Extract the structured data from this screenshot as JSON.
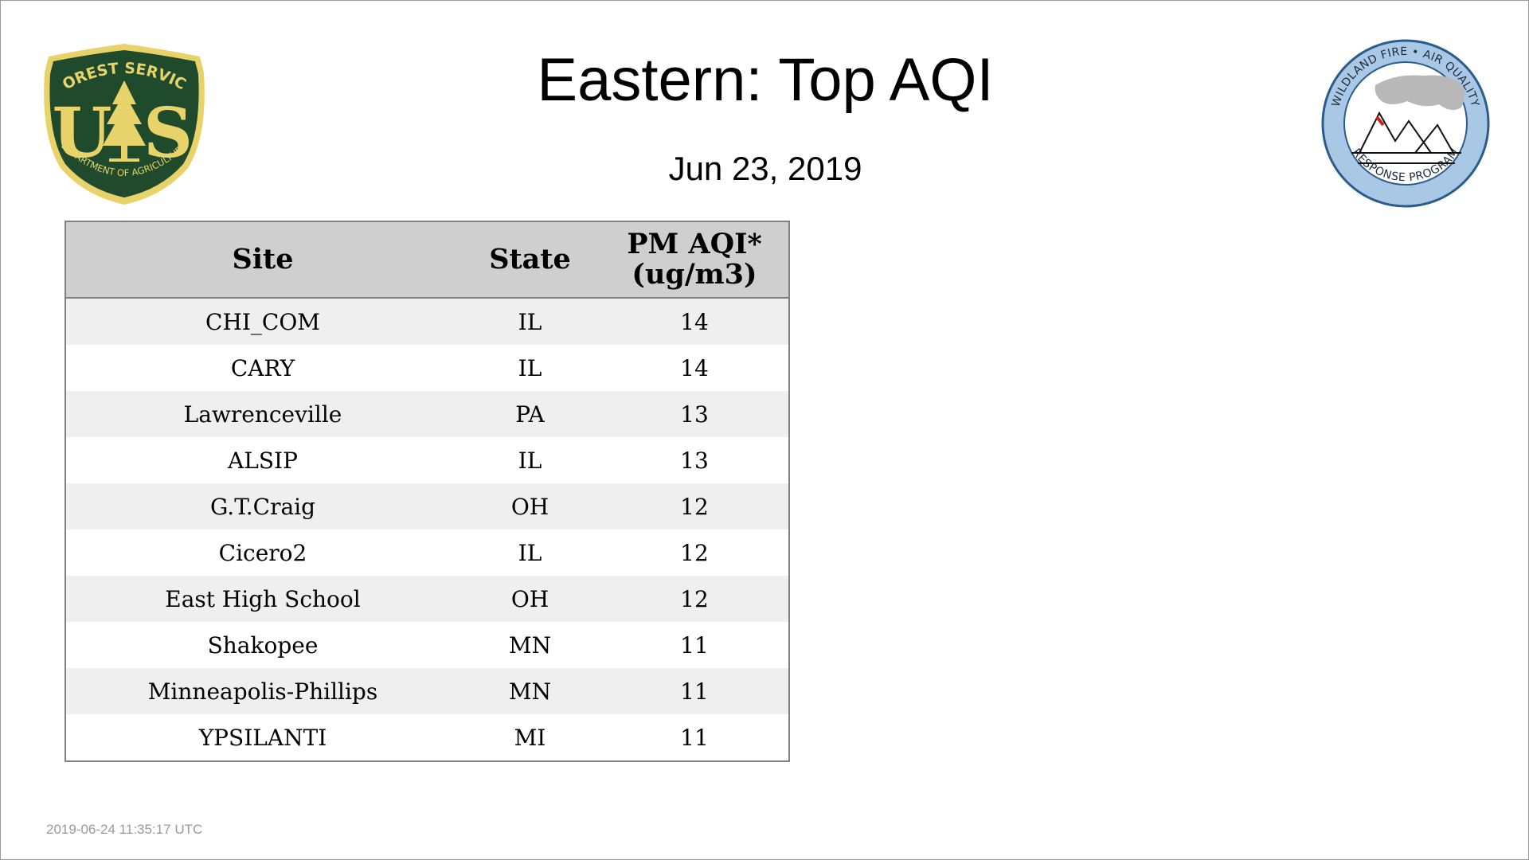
{
  "title": "Eastern: Top AQI",
  "date": "Jun 23, 2019",
  "logos": {
    "usfs": {
      "top_text": "FOREST SERVICE",
      "letters_left": "U",
      "letters_right": "S",
      "bottom_text": "DEPARTMENT OF AGRICULTURE",
      "colors": {
        "shield": "#1f4a2c",
        "gold": "#e8d36a"
      }
    },
    "wfaq": {
      "top_text": "WILDLAND FIRE • AIR QUALITY",
      "bottom_text": "RESPONSE PROGRAM",
      "colors": {
        "ring": "#a9c8e6",
        "border": "#2c5d8a"
      }
    }
  },
  "table": {
    "headers": {
      "site": "Site",
      "state": "State",
      "aqi_line1": "PM AQI*",
      "aqi_line2": "(ug/m3)"
    },
    "rows": [
      {
        "site": "CHI_COM",
        "state": "IL",
        "aqi": "14"
      },
      {
        "site": "CARY",
        "state": "IL",
        "aqi": "14"
      },
      {
        "site": "Lawrenceville",
        "state": "PA",
        "aqi": "13"
      },
      {
        "site": "ALSIP",
        "state": "IL",
        "aqi": "13"
      },
      {
        "site": "G.T.Craig",
        "state": "OH",
        "aqi": "12"
      },
      {
        "site": "Cicero2",
        "state": "IL",
        "aqi": "12"
      },
      {
        "site": "East High School",
        "state": "OH",
        "aqi": "12"
      },
      {
        "site": "Shakopee",
        "state": "MN",
        "aqi": "11"
      },
      {
        "site": "Minneapolis-Phillips",
        "state": "MN",
        "aqi": "11"
      },
      {
        "site": "YPSILANTI",
        "state": "MI",
        "aqi": "11"
      }
    ]
  },
  "footer": {
    "timestamp": "2019-06-24 11:35:17 UTC"
  }
}
